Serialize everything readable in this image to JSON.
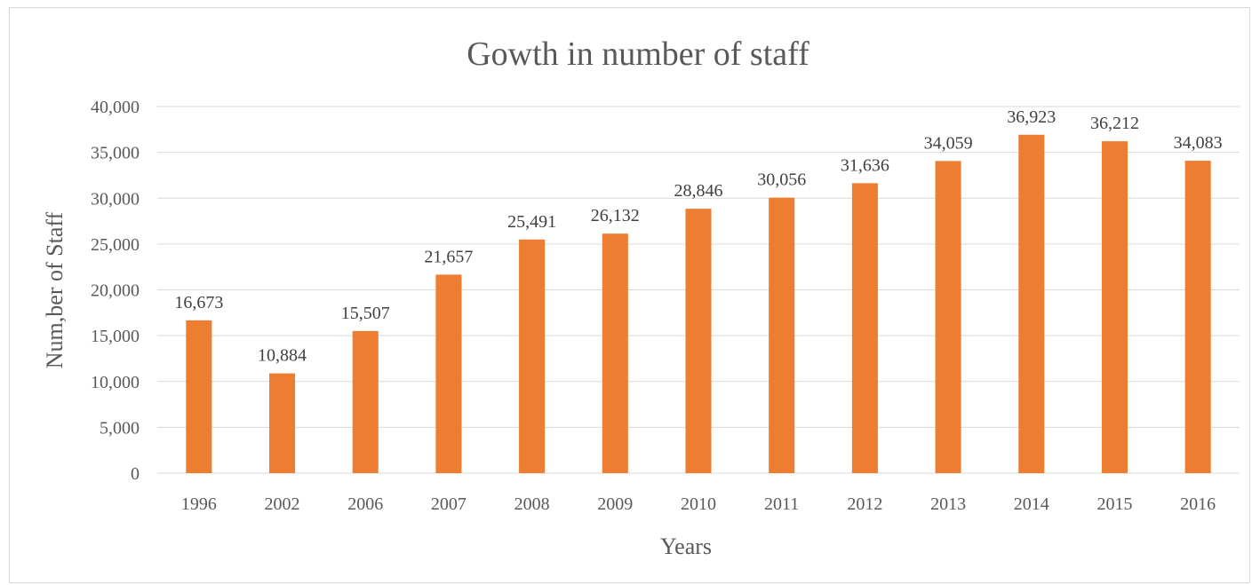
{
  "chart_data": {
    "type": "bar",
    "title": "Gowth  in number of staff",
    "xlabel": "Years",
    "ylabel": "Num,ber of Staff",
    "categories": [
      "1996",
      "2002",
      "2006",
      "2007",
      "2008",
      "2009",
      "2010",
      "2011",
      "2012",
      "2013",
      "2014",
      "2015",
      "2016"
    ],
    "values": [
      16673,
      10884,
      15507,
      21657,
      25491,
      26132,
      28846,
      30056,
      31636,
      34059,
      36923,
      36212,
      34083
    ],
    "value_labels": [
      "16,673",
      "10,884",
      "15,507",
      "21,657",
      "25,491",
      "26,132",
      "28,846",
      "30,056",
      "31,636",
      "34,059",
      "36,923",
      "36,212",
      "34,083"
    ],
    "y_ticks": [
      0,
      5000,
      10000,
      15000,
      20000,
      25000,
      30000,
      35000,
      40000
    ],
    "y_tick_labels": [
      "0",
      "5,000",
      "10,000",
      "15,000",
      "20,000",
      "25,000",
      "30,000",
      "35,000",
      "40,000"
    ],
    "ylim": [
      0,
      40000
    ],
    "grid": true,
    "legend": "none",
    "bar_color": "#ED7D31",
    "grid_color": "#d9d9d9"
  }
}
